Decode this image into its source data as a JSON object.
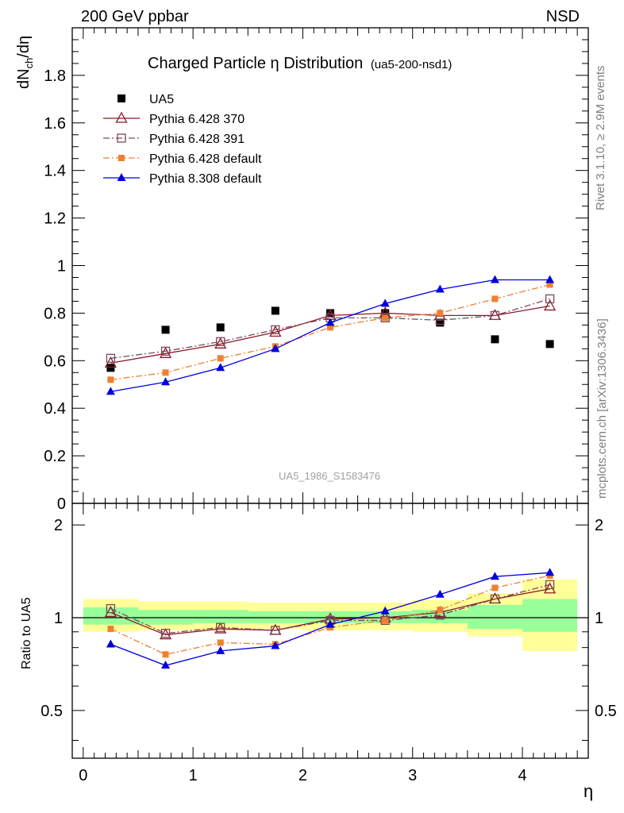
{
  "header": {
    "left": "200 GeV ppbar",
    "right": "NSD"
  },
  "side_labels": {
    "rivet": "Rivet 3.1.10, ≥ 2.9M events",
    "mcplots": "mcplots.cern.ch [arXiv:1306.3436]"
  },
  "watermark": "UA5_1986_S1583476",
  "chart_data": [
    {
      "type": "line",
      "title": "Charged Particle η Distribution",
      "subtitle": "(ua5-200-nsd1)",
      "ylabel": "dNch/dη",
      "ylabel_main": "dN",
      "ylabel_sub": "ch",
      "ylabel_tail": "/dη",
      "xlim": [
        -0.1,
        4.6
      ],
      "ylim": [
        0,
        2.0
      ],
      "yticks": [
        0,
        0.2,
        0.4,
        0.6,
        0.8,
        1,
        1.2,
        1.4,
        1.6,
        1.8
      ],
      "ytick_labels": [
        "0",
        "0.2",
        "0.4",
        "0.6",
        "0.8",
        "1",
        "1.2",
        "1.4",
        "1.6",
        "1.8"
      ],
      "legend_position": "top-left",
      "x": [
        0.25,
        0.75,
        1.25,
        1.75,
        2.25,
        2.75,
        3.25,
        3.75,
        4.25
      ],
      "series": [
        {
          "name": "UA5",
          "color": "#000000",
          "marker": "square",
          "line": false,
          "values": [
            0.57,
            0.73,
            0.74,
            0.81,
            0.8,
            0.8,
            0.76,
            0.69,
            0.67
          ]
        },
        {
          "name": "Pythia 6.428 370",
          "color": "#8b1a2a",
          "marker": "open-triangle",
          "line": "solid",
          "values": [
            0.59,
            0.63,
            0.67,
            0.72,
            0.79,
            0.8,
            0.79,
            0.79,
            0.83
          ]
        },
        {
          "name": "Pythia 6.428 391",
          "color": "#7a4a5a",
          "marker": "open-square",
          "line": "dashdot",
          "values": [
            0.61,
            0.64,
            0.68,
            0.73,
            0.78,
            0.78,
            0.77,
            0.79,
            0.86
          ]
        },
        {
          "name": "Pythia 6.428 default",
          "color": "#f08030",
          "marker": "square-small",
          "line": "dashdot",
          "values": [
            0.52,
            0.55,
            0.61,
            0.66,
            0.74,
            0.78,
            0.8,
            0.86,
            0.92
          ]
        },
        {
          "name": "Pythia 8.308 default",
          "color": "#0000dd",
          "marker": "triangle",
          "line": "solid",
          "values": [
            0.47,
            0.51,
            0.57,
            0.65,
            0.76,
            0.84,
            0.9,
            0.94,
            0.94
          ]
        }
      ]
    },
    {
      "type": "line",
      "ylabel": "Ratio to UA5",
      "xlabel": "η",
      "xlim": [
        -0.1,
        4.6
      ],
      "ylim": [
        0.35,
        2.35
      ],
      "xticks": [
        0,
        1,
        2,
        3,
        4
      ],
      "xtick_labels": [
        "0",
        "1",
        "2",
        "3",
        "4"
      ],
      "yticks": [
        0.5,
        1,
        2
      ],
      "ytick_labels": [
        "0.5",
        "1",
        "2"
      ],
      "ytick_labels_right": [
        "0.5",
        "1",
        "2"
      ],
      "x": [
        0.25,
        0.75,
        1.25,
        1.75,
        2.25,
        2.75,
        3.25,
        3.75,
        4.25
      ],
      "bins": [
        [
          0,
          0.5
        ],
        [
          0.5,
          1
        ],
        [
          1,
          1.5
        ],
        [
          1.5,
          2
        ],
        [
          2,
          2.5
        ],
        [
          2.5,
          3
        ],
        [
          3,
          3.5
        ],
        [
          3.5,
          4
        ],
        [
          4,
          4.5
        ]
      ],
      "band_inner": {
        "color": "#99ff99",
        "low": [
          0.95,
          0.95,
          0.96,
          0.96,
          0.96,
          0.96,
          0.96,
          0.92,
          0.9
        ],
        "high": [
          1.08,
          1.06,
          1.06,
          1.05,
          1.05,
          1.05,
          1.06,
          1.1,
          1.15
        ]
      },
      "band_outer": {
        "color": "#ffff99",
        "low": [
          0.9,
          0.91,
          0.91,
          0.92,
          0.91,
          0.91,
          0.9,
          0.87,
          0.78
        ],
        "high": [
          1.15,
          1.13,
          1.13,
          1.12,
          1.12,
          1.12,
          1.14,
          1.2,
          1.33
        ]
      },
      "series": [
        {
          "name": "Pythia 6.428 370",
          "color": "#8b1a2a",
          "marker": "open-triangle",
          "line": "solid",
          "values": [
            1.04,
            0.88,
            0.92,
            0.91,
            0.99,
            1.0,
            1.04,
            1.15,
            1.24
          ]
        },
        {
          "name": "Pythia 6.428 391",
          "color": "#7a4a5a",
          "marker": "open-square",
          "line": "dashdot",
          "values": [
            1.07,
            0.89,
            0.93,
            0.91,
            0.98,
            0.98,
            1.02,
            1.15,
            1.28
          ]
        },
        {
          "name": "Pythia 6.428 default",
          "color": "#f08030",
          "marker": "square-small",
          "line": "dashdot",
          "values": [
            0.92,
            0.76,
            0.83,
            0.82,
            0.93,
            0.98,
            1.06,
            1.25,
            1.37
          ]
        },
        {
          "name": "Pythia 8.308 default",
          "color": "#0000dd",
          "marker": "triangle",
          "line": "solid",
          "values": [
            0.82,
            0.7,
            0.78,
            0.81,
            0.95,
            1.05,
            1.19,
            1.36,
            1.4
          ]
        }
      ]
    }
  ]
}
